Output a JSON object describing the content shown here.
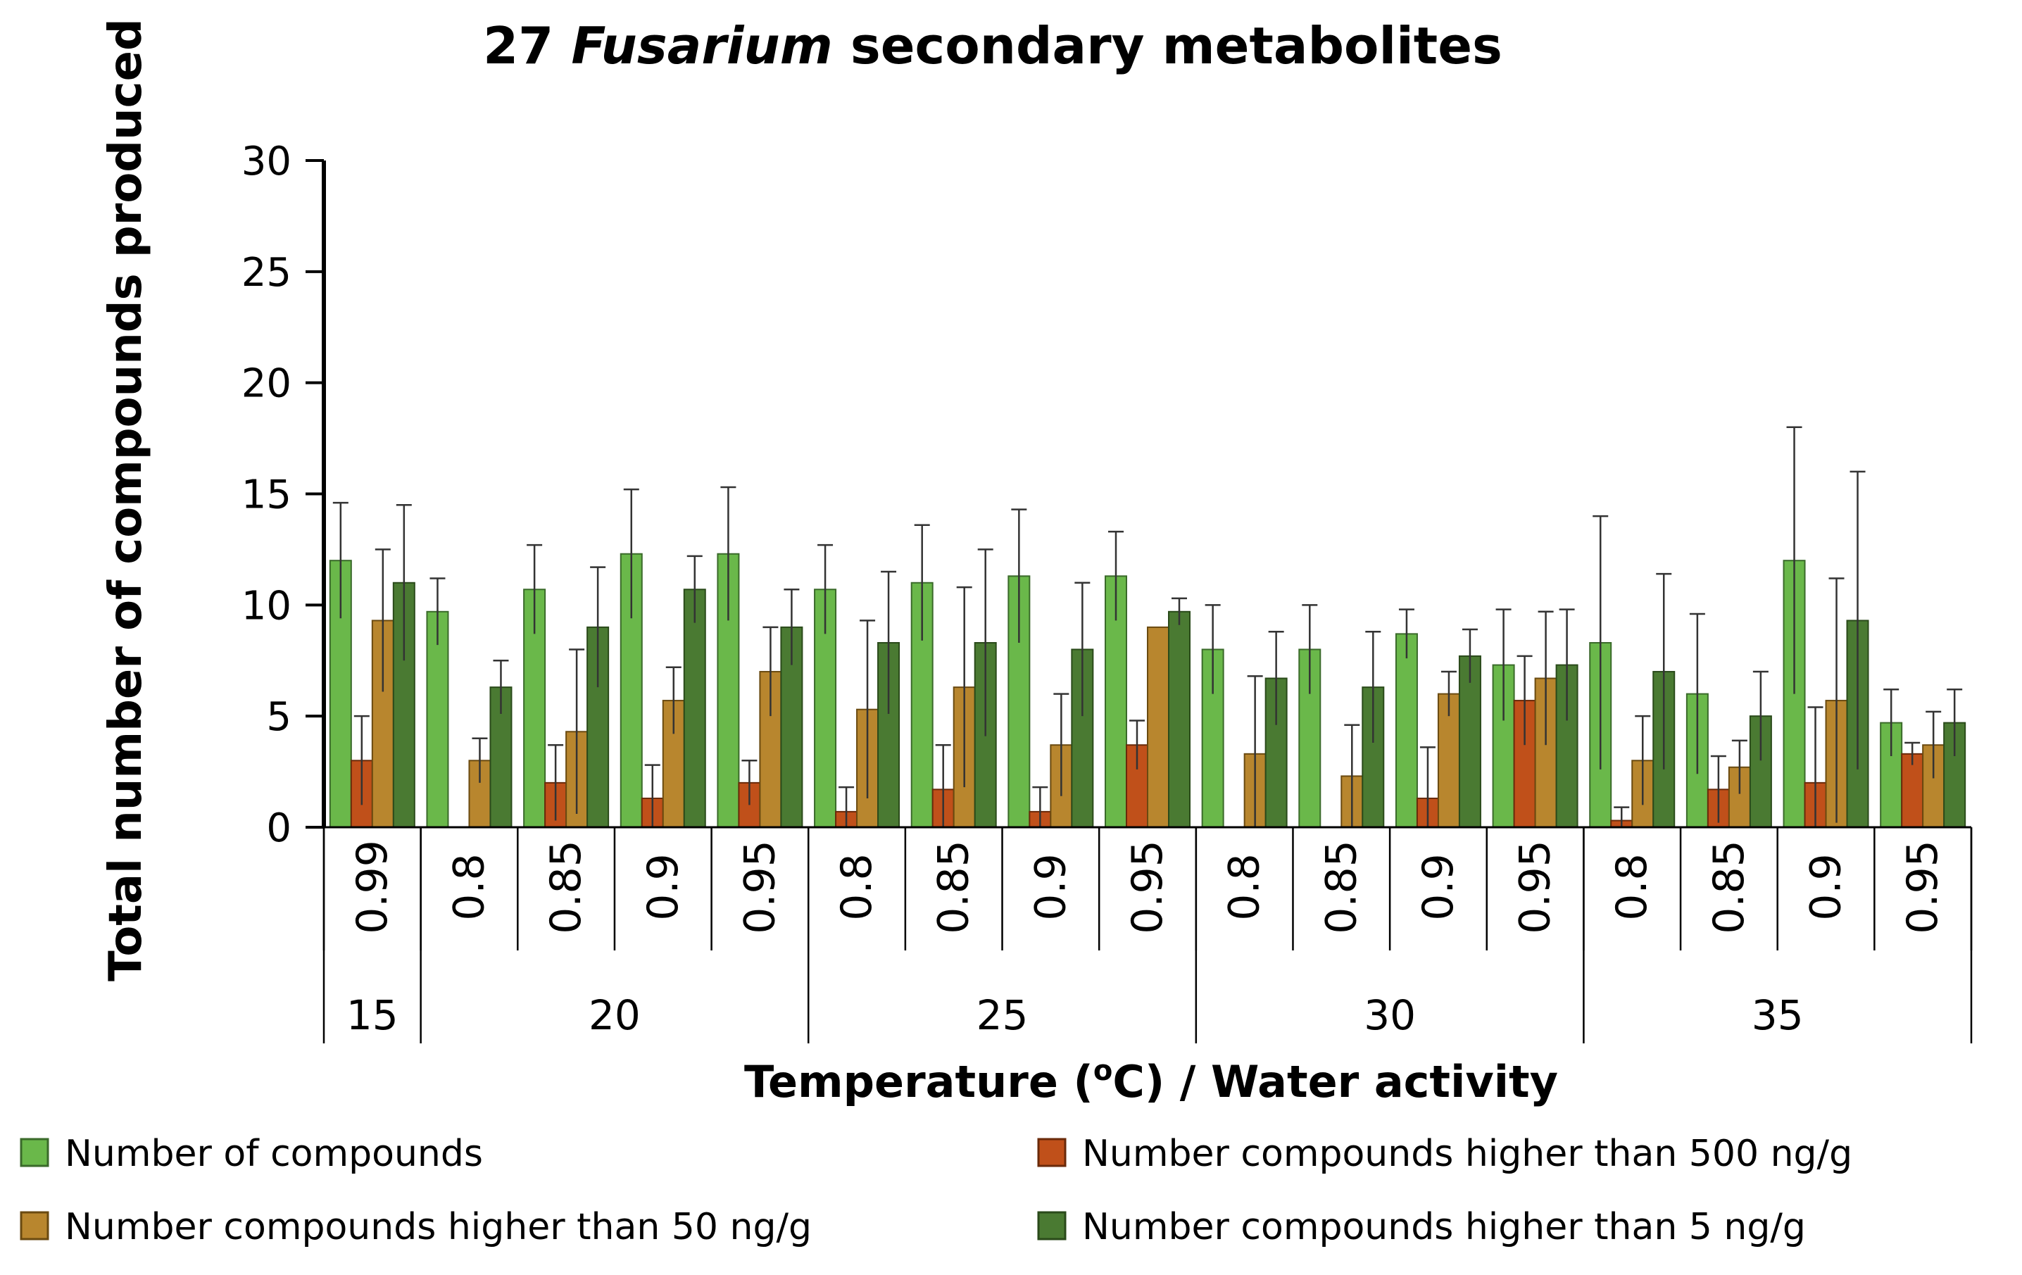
{
  "chart_data": {
    "type": "bar",
    "title_prefix": "27 ",
    "title_italic": "Fusarium",
    "title_suffix": " secondary metabolites",
    "ylabel": "Total number of compounds produced",
    "xlabel_parts": [
      "Temperature (",
      "o",
      "C) / Water activity"
    ],
    "ylim": [
      0,
      30
    ],
    "yticks": [
      "0",
      "5",
      "10",
      "15",
      "20",
      "25",
      "30"
    ],
    "temperatures": [
      {
        "label": "15",
        "span": 1
      },
      {
        "label": "20",
        "span": 4
      },
      {
        "label": "25",
        "span": 4
      },
      {
        "label": "30",
        "span": 4
      },
      {
        "label": "35",
        "span": 4
      }
    ],
    "categories": [
      "0.99",
      "0.8",
      "0.85",
      "0.9",
      "0.95",
      "0.8",
      "0.85",
      "0.9",
      "0.95",
      "0.8",
      "0.85",
      "0.9",
      "0.95",
      "0.8",
      "0.85",
      "0.9",
      "0.95"
    ],
    "series": [
      {
        "name": "Number of compounds",
        "color": "#6ab84a",
        "values": [
          12.0,
          9.7,
          10.7,
          12.3,
          12.3,
          10.7,
          11.0,
          11.3,
          11.3,
          8.0,
          8.0,
          8.7,
          7.3,
          8.3,
          6.0,
          12.0,
          4.7
        ],
        "errors": [
          2.6,
          1.5,
          2.0,
          2.9,
          3.0,
          2.0,
          2.6,
          3.0,
          2.0,
          2.0,
          2.0,
          1.1,
          2.5,
          5.7,
          3.6,
          6.0,
          1.5
        ]
      },
      {
        "name": "Number compounds higher than 500 ng/g",
        "color": "#c0501a",
        "values": [
          3.0,
          0,
          2.0,
          1.3,
          2.0,
          0.7,
          1.7,
          0.7,
          3.7,
          0,
          0,
          1.3,
          5.7,
          0.3,
          1.7,
          2.0,
          3.3
        ],
        "errors": [
          2.0,
          0,
          1.7,
          1.5,
          1.0,
          1.1,
          2.0,
          1.1,
          1.1,
          0,
          0,
          2.3,
          2.0,
          0.6,
          1.5,
          3.4,
          0.5
        ]
      },
      {
        "name": "Number compounds higher than 50 ng/g",
        "color": "#b8862e",
        "values": [
          9.3,
          3.0,
          4.3,
          5.7,
          7.0,
          5.3,
          6.3,
          3.7,
          9.0,
          3.3,
          2.3,
          6.0,
          6.7,
          3.0,
          2.7,
          5.7,
          3.7
        ],
        "errors": [
          3.2,
          1.0,
          3.7,
          1.5,
          2.0,
          4.0,
          4.5,
          2.3,
          0,
          3.5,
          2.3,
          1.0,
          3.0,
          2.0,
          1.2,
          5.5,
          1.5
        ]
      },
      {
        "name": "Number compounds higher than 5 ng/g",
        "color": "#4a7a32",
        "values": [
          11.0,
          6.3,
          9.0,
          10.7,
          9.0,
          8.3,
          8.3,
          8.0,
          9.7,
          6.7,
          6.3,
          7.7,
          7.3,
          7.0,
          5.0,
          9.3,
          4.7
        ],
        "errors": [
          3.5,
          1.2,
          2.7,
          1.5,
          1.7,
          3.2,
          4.2,
          3.0,
          0.6,
          2.1,
          2.5,
          1.2,
          2.5,
          4.4,
          2.0,
          6.7,
          1.5
        ]
      }
    ],
    "legend": [
      {
        "label": "Number of compounds",
        "color": "#6ab84a"
      },
      {
        "label": "Number compounds higher than 500 ng/g",
        "color": "#c0501a"
      },
      {
        "label": "Number compounds higher than 50 ng/g",
        "color": "#b8862e"
      },
      {
        "label": "Number compounds higher than 5 ng/g",
        "color": "#4a7a32"
      }
    ]
  }
}
